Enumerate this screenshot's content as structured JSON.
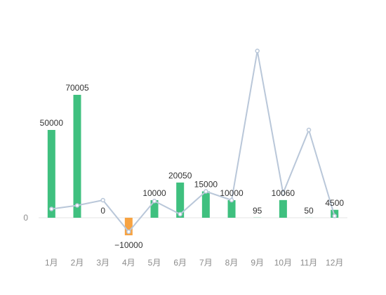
{
  "chart_data": {
    "type": "bar",
    "categories": [
      "1月",
      "2月",
      "3月",
      "4月",
      "5月",
      "6月",
      "7月",
      "8月",
      "9月",
      "10月",
      "11月",
      "12月"
    ],
    "series": [
      {
        "type": "bar",
        "values": [
          50000,
          70005,
          0,
          -10000,
          10000,
          20050,
          15000,
          10000,
          95,
          10060,
          50,
          4500
        ],
        "color_positive": "#3fc07f",
        "color_negative": "#f7a342"
      },
      {
        "type": "line",
        "values": [
          5000,
          7000,
          10000,
          -8000,
          9500,
          2000,
          15000,
          10000,
          95000,
          14000,
          50000,
          1000
        ],
        "color": "#b9c7d9"
      }
    ],
    "y_tick_labels": [
      "0"
    ],
    "ylim": [
      -10000,
      95000
    ],
    "grid": false,
    "legend": "none"
  }
}
